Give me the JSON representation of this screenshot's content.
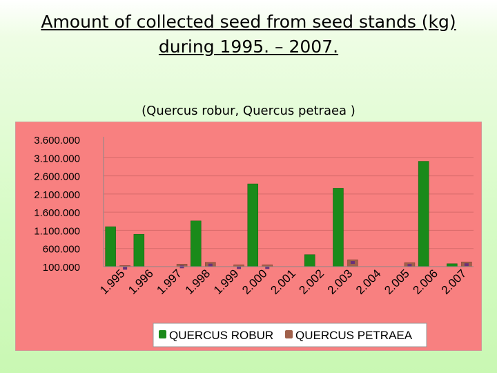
{
  "slide": {
    "title_line1": "Amount of collected seed from seed stands (kg)",
    "title_line2": "during 1995. – 2007.",
    "subtitle": "(Quercus robur, Quercus petraea )"
  },
  "colors": {
    "plot_background": "#f88080",
    "robur": "#1a8a1a",
    "petraea": "#a0604a",
    "petraea_mark": "#6a2f7a"
  },
  "chart_data": {
    "type": "bar",
    "title": "",
    "xlabel": "",
    "ylabel": "",
    "categories": [
      "1.995",
      "1.996",
      "1.997",
      "1.998",
      "1.999",
      "2.000",
      "2.001",
      "2.002",
      "2.003",
      "2.004",
      "2.005",
      "2.006",
      "2.007"
    ],
    "series": [
      {
        "name": "QUERCUS ROBUR",
        "values": [
          1200000,
          990000,
          0,
          1360000,
          0,
          2380000,
          0,
          430000,
          2260000,
          0,
          0,
          3000000,
          180000
        ]
      },
      {
        "name": "QUERCUS PETRAEA",
        "values": [
          130000,
          0,
          170000,
          220000,
          150000,
          150000,
          0,
          0,
          290000,
          0,
          210000,
          0,
          230000
        ]
      }
    ],
    "yticks": [
      "3.600.000",
      "3.100.000",
      "2.600.000",
      "2.100.000",
      "1.600.000",
      "1.100.000",
      "600.000",
      "100.000"
    ],
    "ylim": [
      100000,
      3600000
    ],
    "grid": true,
    "legend_position": "bottom"
  }
}
